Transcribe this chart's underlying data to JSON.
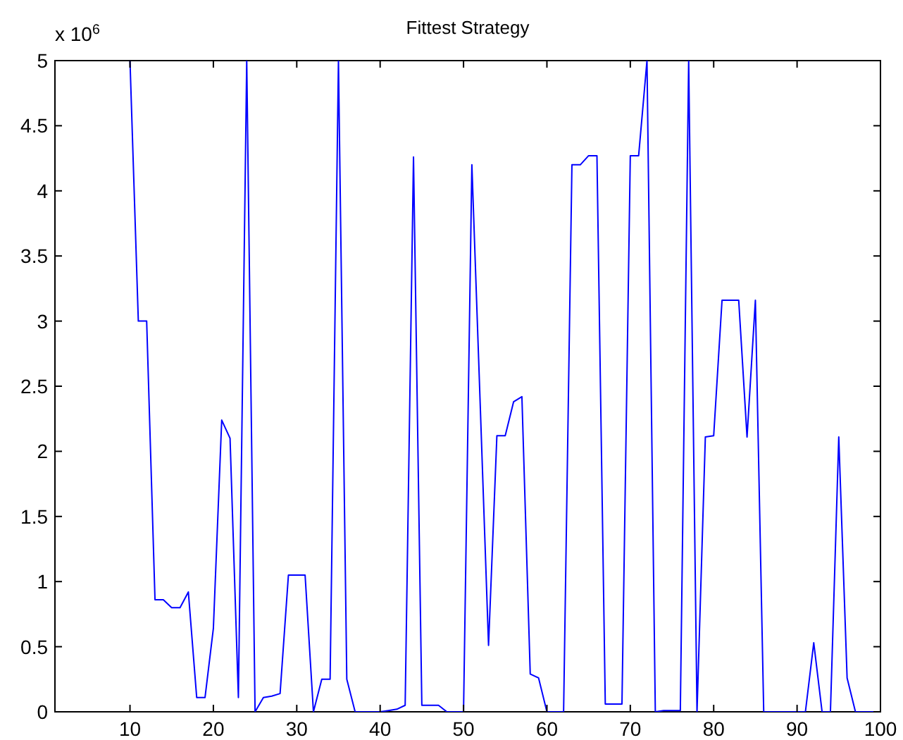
{
  "chart_data": {
    "type": "line",
    "title": "Fittest Strategy",
    "annotations": [
      "x 10$^{6}$"
    ],
    "x": [
      10,
      11,
      12,
      13,
      14,
      15,
      16,
      17,
      18,
      19,
      20,
      21,
      22,
      23,
      24,
      25,
      26,
      27,
      28,
      29,
      30,
      31,
      32,
      33,
      34,
      35,
      36,
      37,
      38,
      39,
      40,
      41,
      42,
      43,
      44,
      45,
      46,
      47,
      48,
      49,
      50,
      51,
      52,
      53,
      54,
      55,
      56,
      57,
      58,
      59,
      60,
      61,
      62,
      63,
      64,
      65,
      66,
      67,
      68,
      69,
      70,
      71,
      72,
      73,
      74,
      75,
      76,
      77,
      78,
      79,
      80,
      81,
      82,
      83,
      84,
      85,
      86,
      87,
      88,
      89,
      90,
      91,
      92,
      93,
      94,
      95,
      96,
      97,
      98,
      99,
      100
    ],
    "series": [
      {
        "color": "#0000ff",
        "values": [
          5,
          3.0,
          3.0,
          0.86,
          0.86,
          0.8,
          0.8,
          0.92,
          0.11,
          0.11,
          0.64,
          2.24,
          2.1,
          0.11,
          5,
          0,
          0.11,
          0.12,
          0.14,
          1.05,
          1.05,
          1.05,
          0,
          0.25,
          0.25,
          5,
          0.25,
          0,
          0,
          0,
          0,
          0.01,
          0.02,
          0.05,
          4.26,
          0.05,
          0.05,
          0.05,
          0,
          0,
          0,
          4.2,
          2.36,
          0.51,
          2.12,
          2.12,
          2.38,
          2.42,
          0.29,
          0.26,
          0,
          0,
          0,
          4.2,
          4.2,
          4.27,
          4.27,
          0.06,
          0.06,
          0.06,
          4.27,
          4.27,
          5,
          0,
          0.01,
          0.01,
          0.01,
          5,
          0,
          2.11,
          2.12,
          3.16,
          3.16,
          3.16,
          2.11,
          3.16,
          0,
          0,
          0,
          0,
          0,
          0,
          0.53,
          0,
          0,
          2.11,
          0.26,
          0,
          0,
          0,
          0
        ]
      }
    ],
    "xlim": [
      1,
      100
    ],
    "ylim": [
      0,
      5
    ],
    "xticks": [
      10,
      20,
      30,
      40,
      50,
      60,
      70,
      80,
      90,
      100
    ],
    "yticks": [
      0,
      0.5,
      1,
      1.5,
      2,
      2.5,
      3,
      3.5,
      4,
      4.5,
      5
    ],
    "grid": false,
    "marker": "none",
    "line_style": "solid"
  }
}
